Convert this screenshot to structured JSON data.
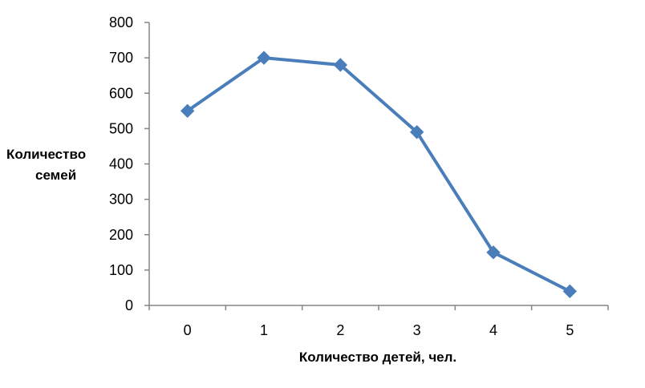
{
  "chart_data": {
    "type": "line",
    "title": "",
    "xlabel": "Количество детей, чел.",
    "ylabel_lines": [
      "Количество",
      "семей"
    ],
    "categories": [
      "0",
      "1",
      "2",
      "3",
      "4",
      "5"
    ],
    "y_ticks": [
      "0",
      "100",
      "200",
      "300",
      "400",
      "500",
      "600",
      "700",
      "800"
    ],
    "ylim": [
      0,
      800
    ],
    "grid": false,
    "legend": "none",
    "series": [
      {
        "values": [
          550,
          700,
          680,
          490,
          150,
          40
        ],
        "color": "#4A7EBB",
        "marker": "diamond"
      }
    ]
  }
}
